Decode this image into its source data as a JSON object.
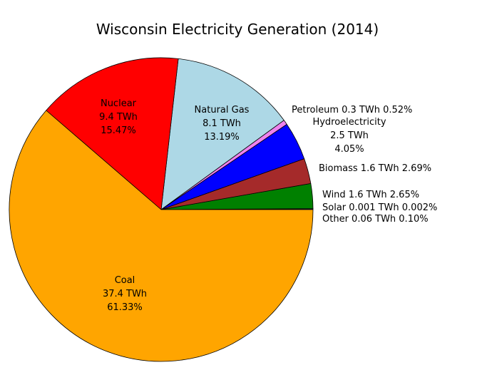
{
  "chart_data": {
    "type": "pie",
    "title": "Wisconsin Electricity Generation (2014)",
    "unit": "TWh",
    "slices": [
      {
        "name": "Other",
        "value_label": "0.06 TWh",
        "value": 0.06,
        "percent": 0.1,
        "percent_label": "0.10%",
        "color": "#000080",
        "label_lines": [
          "Other 0.06 TWh 0.10%"
        ]
      },
      {
        "name": "Solar",
        "value_label": "0.001 TWh",
        "value": 0.001,
        "percent": 0.002,
        "percent_label": "0.002%",
        "color": "#ffff00",
        "label_lines": [
          "Solar 0.001 TWh 0.002%"
        ]
      },
      {
        "name": "Wind",
        "value_label": "1.6 TWh",
        "value": 1.6,
        "percent": 2.65,
        "percent_label": "2.65%",
        "color": "#008000",
        "label_lines": [
          "Wind 1.6 TWh 2.65%"
        ]
      },
      {
        "name": "Biomass",
        "value_label": "1.6 TWh",
        "value": 1.6,
        "percent": 2.69,
        "percent_label": "2.69%",
        "color": "#a52a2a",
        "label_lines": [
          "Biomass 1.6 TWh 2.69%"
        ]
      },
      {
        "name": "Hydroelectricity",
        "value_label": "2.5 TWh",
        "value": 2.5,
        "percent": 4.05,
        "percent_label": "4.05%",
        "color": "#0000ff",
        "label_lines": [
          "Hydroelectricity",
          "2.5 TWh",
          "4.05%"
        ]
      },
      {
        "name": "Petroleum",
        "value_label": "0.3 TWh",
        "value": 0.3,
        "percent": 0.52,
        "percent_label": "0.52%",
        "color": "#ee82ee",
        "label_lines": [
          "Petroleum 0.3 TWh 0.52%"
        ]
      },
      {
        "name": "Natural Gas",
        "value_label": "8.1 TWh",
        "value": 8.1,
        "percent": 13.19,
        "percent_label": "13.19%",
        "color": "#add8e6",
        "label_lines": [
          "Natural Gas",
          "8.1 TWh",
          "13.19%"
        ]
      },
      {
        "name": "Nuclear",
        "value_label": "9.4 TWh",
        "value": 9.4,
        "percent": 15.47,
        "percent_label": "15.47%",
        "color": "#ff0000",
        "label_lines": [
          "Nuclear",
          "9.4 TWh",
          "15.47%"
        ]
      },
      {
        "name": "Coal",
        "value_label": "37.4 TWh",
        "value": 37.4,
        "percent": 61.33,
        "percent_label": "61.33%",
        "color": "#ffa500",
        "label_lines": [
          "Coal",
          "37.4 TWh",
          "61.33%"
        ]
      }
    ]
  }
}
